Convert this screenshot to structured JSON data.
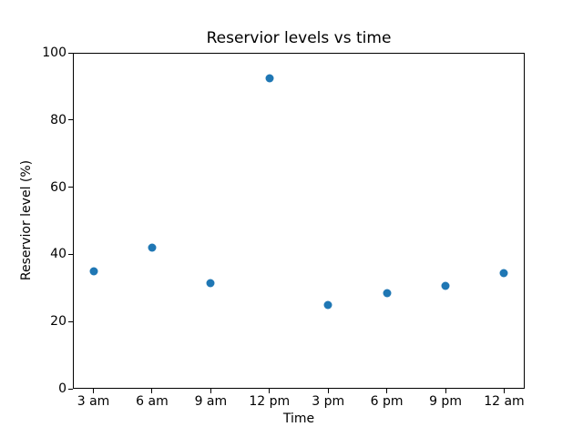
{
  "chart_data": {
    "type": "scatter",
    "title": "Reservior levels vs time",
    "xlabel": "Time",
    "ylabel": "Reservior level (%)",
    "categories": [
      "3 am",
      "6 am",
      "9 am",
      "12 pm",
      "3 pm",
      "6 pm",
      "9 pm",
      "12 am"
    ],
    "values": [
      35,
      42,
      31.5,
      92.5,
      25,
      28.5,
      30.5,
      34.5
    ],
    "ylim": [
      0,
      100
    ],
    "yticks": [
      0,
      20,
      40,
      60,
      80,
      100
    ],
    "marker_color": "#1f77b4",
    "grid": false,
    "legend_position": "none",
    "background_color": "#ffffff",
    "spine_color": "#000000"
  }
}
